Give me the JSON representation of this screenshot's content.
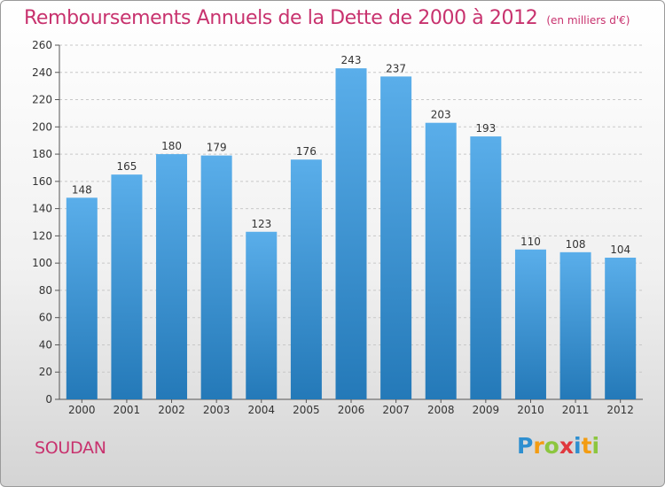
{
  "header": {
    "title": "Remboursements Annuels de la Dette de 2000 à 2012",
    "subtitle": "(en milliers d'€)"
  },
  "place_name": "SOUDAN",
  "logo": {
    "text": "Proxiti",
    "letters": [
      {
        "ch": "P",
        "color": "#2e8fd0"
      },
      {
        "ch": "r",
        "color": "#f39c12"
      },
      {
        "ch": "o",
        "color": "#8cc63f"
      },
      {
        "ch": "x",
        "color": "#e0383e"
      },
      {
        "ch": "i",
        "color": "#2e8fd0"
      },
      {
        "ch": "t",
        "color": "#f39c12"
      },
      {
        "ch": "i",
        "color": "#8cc63f"
      }
    ]
  },
  "colors": {
    "title": "#c8326e",
    "bar_top": "#5aaeea",
    "bar_bottom": "#2479b8",
    "grid": "#c8c8c8"
  },
  "chart_data": {
    "type": "bar",
    "title": "Remboursements Annuels de la Dette de 2000 à 2012",
    "subtitle": "(en milliers d'€)",
    "categories": [
      "2000",
      "2001",
      "2002",
      "2003",
      "2004",
      "2005",
      "2006",
      "2007",
      "2008",
      "2009",
      "2010",
      "2011",
      "2012"
    ],
    "values": [
      148,
      165,
      180,
      179,
      123,
      176,
      243,
      237,
      203,
      193,
      110,
      108,
      104
    ],
    "ylim": [
      0,
      260
    ],
    "yticks": [
      0,
      20,
      40,
      60,
      80,
      100,
      120,
      140,
      160,
      180,
      200,
      220,
      240,
      260
    ],
    "grid": true,
    "data_labels": true
  }
}
